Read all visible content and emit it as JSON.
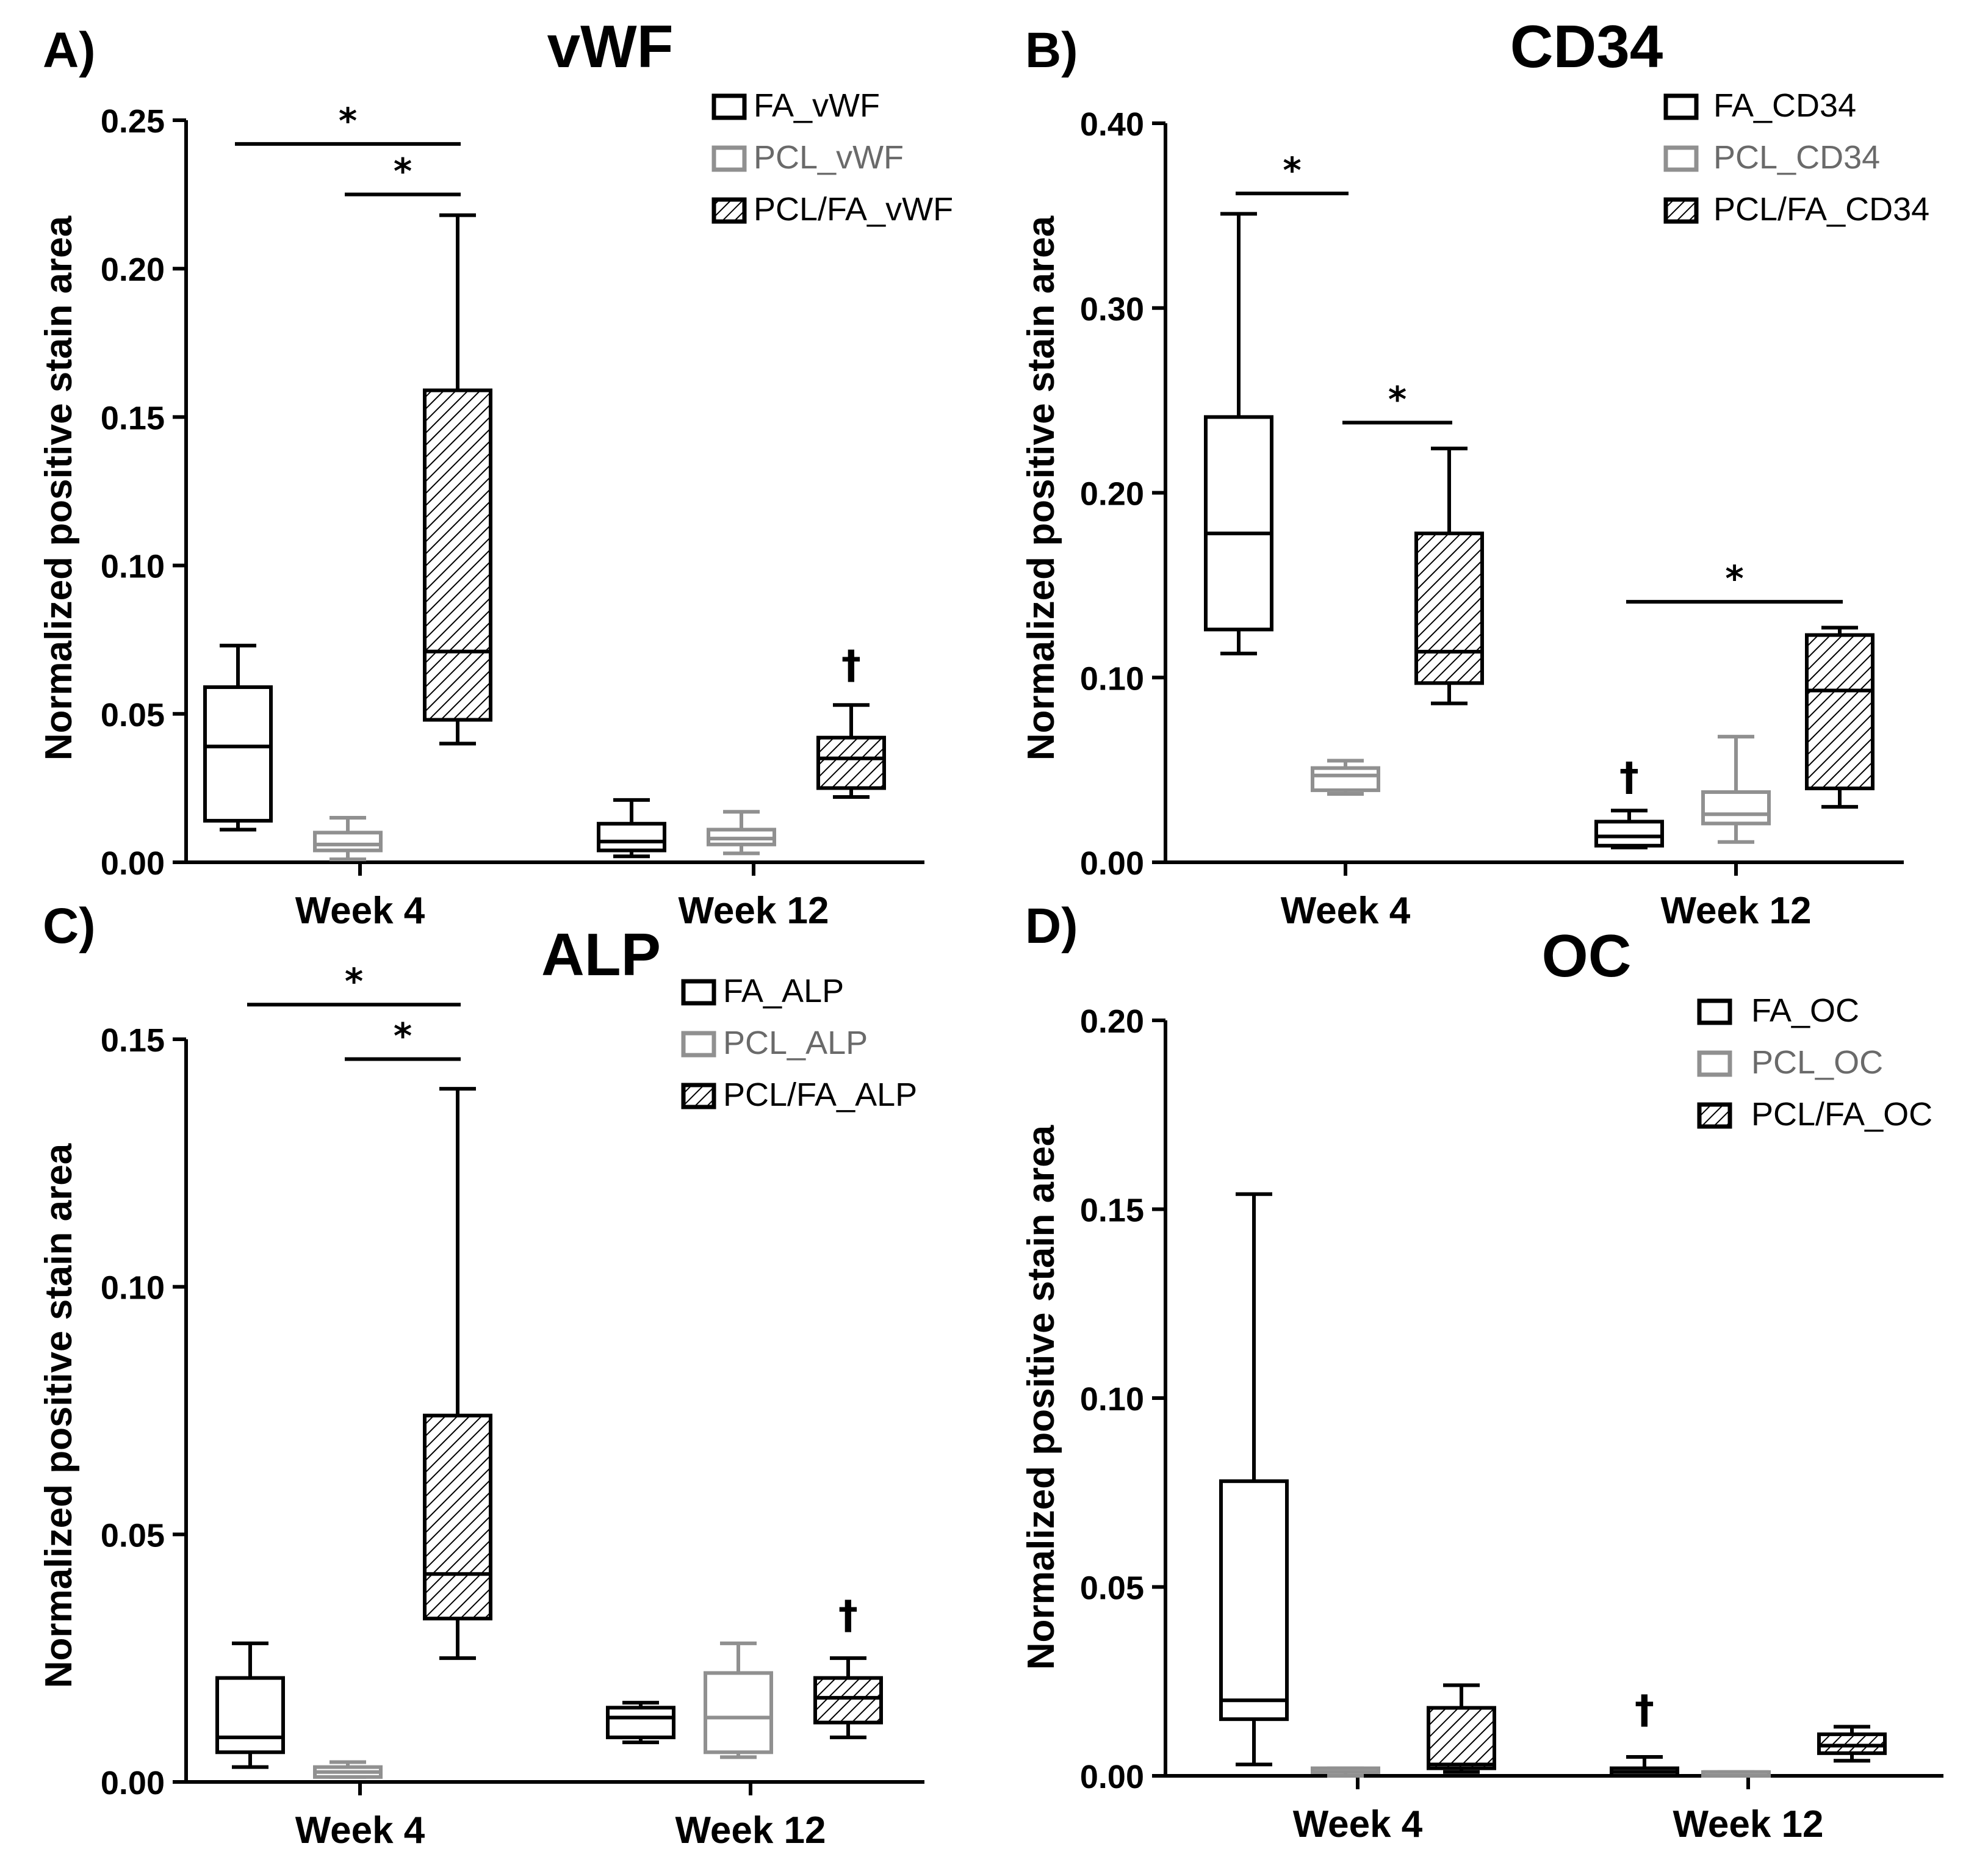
{
  "figure": {
    "ylabel": "Normalized positive stain area",
    "colors": {
      "FA": "#000000",
      "PCL": "#909090",
      "PCLFA": "#000000",
      "axis": "#000000"
    }
  },
  "chart_data": [
    {
      "type": "boxplot",
      "panel_label": "A)",
      "title": "vWF",
      "ylabel": "Normalized positive stain area",
      "ylim": [
        0,
        0.25
      ],
      "yticks": [
        "0.00",
        "0.05",
        "0.10",
        "0.15",
        "0.20",
        "0.25"
      ],
      "ytick_values": [
        0,
        0.05,
        0.1,
        0.15,
        0.2,
        0.25
      ],
      "categories": [
        "Week 4",
        "Week 12"
      ],
      "legend": [
        "FA_vWF",
        "PCL_vWF",
        "PCL/FA_vWF"
      ],
      "series": [
        {
          "name": "FA_vWF",
          "style": "FA",
          "boxes": [
            {
              "min": 0.011,
              "q1": 0.014,
              "median": 0.039,
              "q3": 0.059,
              "max": 0.073
            },
            {
              "min": 0.002,
              "q1": 0.004,
              "median": 0.007,
              "q3": 0.013,
              "max": 0.021
            }
          ]
        },
        {
          "name": "PCL_vWF",
          "style": "PCL",
          "boxes": [
            {
              "min": 0.001,
              "q1": 0.004,
              "median": 0.006,
              "q3": 0.01,
              "max": 0.015
            },
            {
              "min": 0.003,
              "q1": 0.006,
              "median": 0.008,
              "q3": 0.011,
              "max": 0.017
            }
          ]
        },
        {
          "name": "PCL/FA_vWF",
          "style": "PCLFA",
          "boxes": [
            {
              "min": 0.04,
              "q1": 0.048,
              "median": 0.071,
              "q3": 0.159,
              "max": 0.218
            },
            {
              "min": 0.022,
              "q1": 0.025,
              "median": 0.035,
              "q3": 0.042,
              "max": 0.053
            }
          ]
        }
      ],
      "significance": [
        {
          "label": "*",
          "from": [
            0,
            0
          ],
          "to": [
            0,
            2
          ],
          "y": 0.242
        },
        {
          "label": "*",
          "from": [
            0,
            1
          ],
          "to": [
            0,
            2
          ],
          "y": 0.225
        }
      ],
      "dagger": [
        {
          "label": "†",
          "group": 1,
          "series": 2,
          "y": 0.062
        }
      ]
    },
    {
      "type": "boxplot",
      "panel_label": "B)",
      "title": "CD34",
      "ylabel": "Normalized positive stain area",
      "ylim": [
        0,
        0.4
      ],
      "yticks": [
        "0.00",
        "0.10",
        "0.20",
        "0.30",
        "0.40"
      ],
      "ytick_values": [
        0,
        0.1,
        0.2,
        0.3,
        0.4
      ],
      "categories": [
        "Week 4",
        "Week 12"
      ],
      "legend": [
        "FA_CD34",
        "PCL_CD34",
        "PCL/FA_CD34"
      ],
      "series": [
        {
          "name": "FA_CD34",
          "style": "FA",
          "boxes": [
            {
              "min": 0.113,
              "q1": 0.126,
              "median": 0.178,
              "q3": 0.241,
              "max": 0.351
            },
            {
              "min": 0.008,
              "q1": 0.009,
              "median": 0.014,
              "q3": 0.022,
              "max": 0.028
            }
          ]
        },
        {
          "name": "PCL_CD34",
          "style": "PCL",
          "boxes": [
            {
              "min": 0.037,
              "q1": 0.039,
              "median": 0.047,
              "q3": 0.051,
              "max": 0.055
            },
            {
              "min": 0.011,
              "q1": 0.021,
              "median": 0.026,
              "q3": 0.038,
              "max": 0.068
            }
          ]
        },
        {
          "name": "PCL/FA_CD34",
          "style": "PCLFA",
          "boxes": [
            {
              "min": 0.086,
              "q1": 0.097,
              "median": 0.114,
              "q3": 0.178,
              "max": 0.224
            },
            {
              "min": 0.03,
              "q1": 0.04,
              "median": 0.093,
              "q3": 0.123,
              "max": 0.127
            }
          ]
        }
      ],
      "significance": [
        {
          "label": "*",
          "from": [
            0,
            0
          ],
          "to": [
            0,
            1
          ],
          "y": 0.362
        },
        {
          "label": "*",
          "from": [
            0,
            1
          ],
          "to": [
            0,
            2
          ],
          "y": 0.238
        },
        {
          "label": "*",
          "from": [
            1,
            0
          ],
          "to": [
            1,
            2
          ],
          "y": 0.141
        }
      ],
      "dagger": [
        {
          "label": "†",
          "group": 1,
          "series": 0,
          "y": 0.039
        }
      ]
    },
    {
      "type": "boxplot",
      "panel_label": "C)",
      "title": "ALP",
      "ylabel": "Normalized positive stain area",
      "ylim": [
        0,
        0.15
      ],
      "yticks": [
        "0.00",
        "0.05",
        "0.10",
        "0.15"
      ],
      "ytick_values": [
        0,
        0.05,
        0.1,
        0.15
      ],
      "categories": [
        "Week 4",
        "Week 12"
      ],
      "legend": [
        "FA_ALP",
        "PCL_ALP",
        "PCL/FA_ALP"
      ],
      "series": [
        {
          "name": "FA_ALP",
          "style": "FA",
          "boxes": [
            {
              "min": 0.003,
              "q1": 0.006,
              "median": 0.009,
              "q3": 0.021,
              "max": 0.028
            },
            {
              "min": 0.008,
              "q1": 0.009,
              "median": 0.013,
              "q3": 0.015,
              "max": 0.016
            }
          ]
        },
        {
          "name": "PCL_ALP",
          "style": "PCL",
          "boxes": [
            {
              "min": 0.001,
              "q1": 0.001,
              "median": 0.002,
              "q3": 0.003,
              "max": 0.004
            },
            {
              "min": 0.005,
              "q1": 0.006,
              "median": 0.013,
              "q3": 0.022,
              "max": 0.028
            }
          ]
        },
        {
          "name": "PCL/FA_ALP",
          "style": "PCLFA",
          "boxes": [
            {
              "min": 0.025,
              "q1": 0.033,
              "median": 0.042,
              "q3": 0.074,
              "max": 0.14
            },
            {
              "min": 0.009,
              "q1": 0.012,
              "median": 0.017,
              "q3": 0.021,
              "max": 0.025
            }
          ]
        }
      ],
      "significance": [
        {
          "label": "*",
          "from": [
            0,
            0
          ],
          "to": [
            0,
            2
          ],
          "y": 0.157
        },
        {
          "label": "*",
          "from": [
            0,
            1
          ],
          "to": [
            0,
            2
          ],
          "y": 0.146
        }
      ],
      "dagger": [
        {
          "label": "†",
          "group": 1,
          "series": 2,
          "y": 0.031
        }
      ]
    },
    {
      "type": "boxplot",
      "panel_label": "D)",
      "title": "OC",
      "ylabel": "Normalized positive stain area",
      "ylim": [
        0,
        0.2
      ],
      "yticks": [
        "0.00",
        "0.05",
        "0.10",
        "0.15",
        "0.20"
      ],
      "ytick_values": [
        0,
        0.05,
        0.1,
        0.15,
        0.2
      ],
      "categories": [
        "Week 4",
        "Week 12"
      ],
      "legend": [
        "FA_OC",
        "PCL_OC",
        "PCL/FA_OC"
      ],
      "series": [
        {
          "name": "FA_OC",
          "style": "FA",
          "boxes": [
            {
              "min": 0.003,
              "q1": 0.015,
              "median": 0.02,
              "q3": 0.078,
              "max": 0.154
            },
            {
              "min": 0.0,
              "q1": 0.0,
              "median": 0.001,
              "q3": 0.002,
              "max": 0.005
            }
          ]
        },
        {
          "name": "PCL_OC",
          "style": "PCL",
          "boxes": [
            {
              "min": 0.0,
              "q1": 0.001,
              "median": 0.001,
              "q3": 0.002,
              "max": 0.002
            },
            {
              "min": 0.0,
              "q1": 0.0,
              "median": 0.001,
              "q3": 0.001,
              "max": 0.001
            }
          ]
        },
        {
          "name": "PCL/FA_OC",
          "style": "PCLFA",
          "boxes": [
            {
              "min": 0.001,
              "q1": 0.002,
              "median": 0.003,
              "q3": 0.018,
              "max": 0.024
            },
            {
              "min": 0.004,
              "q1": 0.006,
              "median": 0.008,
              "q3": 0.011,
              "max": 0.013
            }
          ]
        }
      ],
      "significance": [],
      "dagger": [
        {
          "label": "†",
          "group": 1,
          "series": 0,
          "y": 0.014
        }
      ]
    }
  ]
}
